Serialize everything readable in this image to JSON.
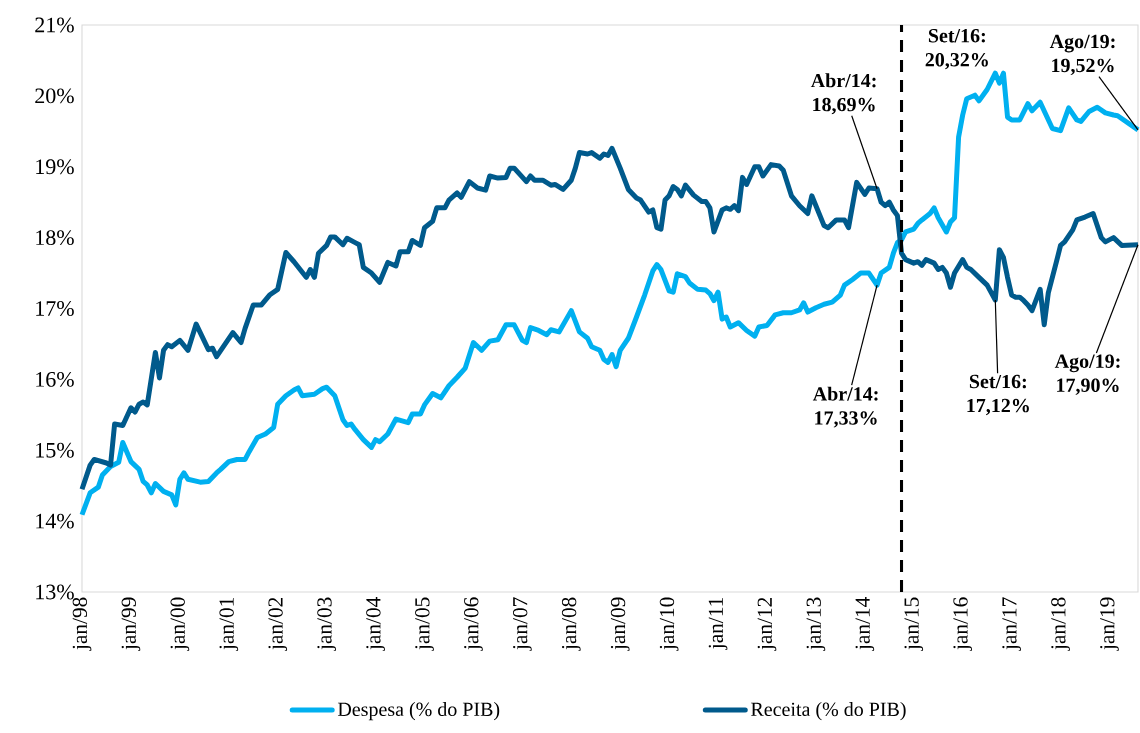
{
  "chart_data": {
    "type": "line",
    "xlim": [
      "1998-01",
      "2019-08"
    ],
    "xticks": [
      {
        "value": "1998-01",
        "label": "jan/98"
      },
      {
        "value": "1999-01",
        "label": "jan/99"
      },
      {
        "value": "2000-01",
        "label": "jan/00"
      },
      {
        "value": "2001-01",
        "label": "jan/01"
      },
      {
        "value": "2002-01",
        "label": "jan/02"
      },
      {
        "value": "2003-01",
        "label": "jan/03"
      },
      {
        "value": "2004-01",
        "label": "jan/04"
      },
      {
        "value": "2005-01",
        "label": "jan/05"
      },
      {
        "value": "2006-01",
        "label": "jan/06"
      },
      {
        "value": "2007-01",
        "label": "jan/07"
      },
      {
        "value": "2008-01",
        "label": "jan/08"
      },
      {
        "value": "2009-01",
        "label": "jan/09"
      },
      {
        "value": "2010-01",
        "label": "jan/10"
      },
      {
        "value": "2011-01",
        "label": "jan/11"
      },
      {
        "value": "2012-01",
        "label": "jan/12"
      },
      {
        "value": "2013-01",
        "label": "jan/13"
      },
      {
        "value": "2014-01",
        "label": "jan/14"
      },
      {
        "value": "2015-01",
        "label": "jan/15"
      },
      {
        "value": "2016-01",
        "label": "jan/16"
      },
      {
        "value": "2017-01",
        "label": "jan/17"
      },
      {
        "value": "2018-01",
        "label": "jan/18"
      },
      {
        "value": "2019-01",
        "label": "jan/19"
      }
    ],
    "ylim": [
      13,
      21
    ],
    "yticks": [
      {
        "value": 13,
        "label": "13%"
      },
      {
        "value": 14,
        "label": "14%"
      },
      {
        "value": 15,
        "label": "15%"
      },
      {
        "value": 16,
        "label": "16%"
      },
      {
        "value": 17,
        "label": "17%"
      },
      {
        "value": 18,
        "label": "18%"
      },
      {
        "value": 19,
        "label": "19%"
      },
      {
        "value": 20,
        "label": "20%"
      },
      {
        "value": 21,
        "label": "21%"
      }
    ],
    "legend": "bottom",
    "series": [
      {
        "name": "Despesa (% do PIB)",
        "color": "#00b0f0",
        "x": [
          "1998-01",
          "1998-03",
          "1998-05",
          "1998-06",
          "1998-08",
          "1998-10",
          "1998-11",
          "1999-01",
          "1999-03",
          "1999-04",
          "1999-05",
          "1999-06",
          "1999-07",
          "1999-09",
          "1999-11",
          "1999-12",
          "2000-01",
          "2000-02",
          "2000-03",
          "2000-06",
          "2000-08",
          "2000-10",
          "2000-11",
          "2001-01",
          "2001-03",
          "2001-05",
          "2001-06",
          "2001-08",
          "2001-10",
          "2001-12",
          "2002-01",
          "2002-03",
          "2002-05",
          "2002-06",
          "2002-07",
          "2002-10",
          "2002-12",
          "2003-01",
          "2003-03",
          "2003-05",
          "2003-06",
          "2003-07",
          "2003-08",
          "2003-10",
          "2003-12",
          "2004-01",
          "2004-02",
          "2004-04",
          "2004-06",
          "2004-09",
          "2004-10",
          "2004-12",
          "2005-01",
          "2005-03",
          "2005-05",
          "2005-07",
          "2005-09",
          "2005-11",
          "2006-01",
          "2006-03",
          "2006-05",
          "2006-07",
          "2006-09",
          "2006-11",
          "2007-01",
          "2007-02",
          "2007-03",
          "2007-05",
          "2007-07",
          "2007-08",
          "2007-10",
          "2008-01",
          "2008-03",
          "2008-05",
          "2008-06",
          "2008-08",
          "2008-09",
          "2008-10",
          "2008-11",
          "2008-12",
          "2009-01",
          "2009-03",
          "2009-05",
          "2009-07",
          "2009-09",
          "2009-10",
          "2009-11",
          "2010-01",
          "2010-02",
          "2010-03",
          "2010-05",
          "2010-06",
          "2010-08",
          "2010-10",
          "2010-11",
          "2010-12",
          "2011-01",
          "2011-02",
          "2011-03",
          "2011-04",
          "2011-06",
          "2011-08",
          "2011-10",
          "2011-11",
          "2012-01",
          "2012-03",
          "2012-05",
          "2012-07",
          "2012-09",
          "2012-10",
          "2012-11",
          "2013-01",
          "2013-03",
          "2013-05",
          "2013-07",
          "2013-08",
          "2013-10",
          "2013-12",
          "2014-02",
          "2014-04",
          "2014-05",
          "2014-07",
          "2014-08",
          "2014-09",
          "2014-10",
          "2014-11",
          "2015-01",
          "2015-02",
          "2015-03",
          "2015-05",
          "2015-06",
          "2015-07",
          "2015-09",
          "2015-10",
          "2015-11",
          "2015-12",
          "2016-01",
          "2016-02",
          "2016-04",
          "2016-05",
          "2016-07",
          "2016-09",
          "2016-10",
          "2016-11",
          "2016-12",
          "2017-01",
          "2017-03",
          "2017-05",
          "2017-06",
          "2017-08",
          "2017-11",
          "2018-01",
          "2018-03",
          "2018-05",
          "2018-06",
          "2018-08",
          "2018-10",
          "2018-12",
          "2019-02",
          "2019-03",
          "2019-08"
        ],
        "values": [
          14.09,
          14.4,
          14.48,
          14.65,
          14.77,
          14.83,
          15.11,
          14.84,
          14.73,
          14.56,
          14.51,
          14.4,
          14.53,
          14.42,
          14.37,
          14.23,
          14.59,
          14.68,
          14.59,
          14.55,
          14.56,
          14.68,
          14.73,
          14.84,
          14.87,
          14.87,
          14.98,
          15.18,
          15.23,
          15.32,
          15.65,
          15.77,
          15.85,
          15.88,
          15.77,
          15.79,
          15.87,
          15.89,
          15.77,
          15.43,
          15.35,
          15.37,
          15.29,
          15.15,
          15.04,
          15.15,
          15.12,
          15.23,
          15.44,
          15.39,
          15.51,
          15.51,
          15.64,
          15.8,
          15.74,
          15.91,
          16.03,
          16.16,
          16.52,
          16.41,
          16.54,
          16.56,
          16.77,
          16.77,
          16.55,
          16.52,
          16.73,
          16.69,
          16.63,
          16.7,
          16.67,
          16.97,
          16.67,
          16.58,
          16.46,
          16.41,
          16.28,
          16.24,
          16.35,
          16.18,
          16.41,
          16.58,
          16.88,
          17.19,
          17.53,
          17.62,
          17.55,
          17.25,
          17.23,
          17.49,
          17.45,
          17.36,
          17.27,
          17.26,
          17.21,
          17.11,
          17.23,
          16.85,
          16.88,
          16.74,
          16.8,
          16.69,
          16.61,
          16.74,
          16.76,
          16.91,
          16.94,
          16.94,
          16.98,
          17.08,
          16.95,
          17.01,
          17.06,
          17.09,
          17.19,
          17.33,
          17.41,
          17.5,
          17.5,
          17.33,
          17.5,
          17.58,
          17.78,
          17.93,
          17.97,
          18.08,
          18.12,
          18.2,
          18.25,
          18.34,
          18.42,
          18.28,
          18.08,
          18.22,
          18.28,
          19.42,
          19.73,
          19.96,
          20.01,
          19.93,
          20.09,
          20.32,
          20.18,
          20.32,
          19.7,
          19.66,
          19.66,
          19.89,
          19.79,
          19.91,
          19.54,
          19.51,
          19.83,
          19.66,
          19.64,
          19.78,
          19.84,
          19.76,
          19.73,
          19.72,
          19.52
        ]
      },
      {
        "name": "Receita (% do PIB)",
        "color": "#005a8c",
        "x": [
          "1998-01",
          "1998-03",
          "1998-04",
          "1998-07",
          "1998-08",
          "1998-09",
          "1998-11",
          "1999-01",
          "1999-02",
          "1999-03",
          "1999-04",
          "1999-05",
          "1999-07",
          "1999-08",
          "1999-09",
          "1999-10",
          "1999-11",
          "2000-01",
          "2000-03",
          "2000-05",
          "2000-08",
          "2000-09",
          "2000-10",
          "2000-12",
          "2001-02",
          "2001-04",
          "2001-05",
          "2001-07",
          "2001-09",
          "2001-11",
          "2002-01",
          "2002-03",
          "2002-05",
          "2002-08",
          "2002-09",
          "2002-10",
          "2002-11",
          "2003-01",
          "2003-02",
          "2003-03",
          "2003-05",
          "2003-06",
          "2003-08",
          "2003-09",
          "2003-10",
          "2003-12",
          "2004-02",
          "2004-04",
          "2004-06",
          "2004-07",
          "2004-09",
          "2004-10",
          "2004-12",
          "2005-01",
          "2005-03",
          "2005-04",
          "2005-06",
          "2005-07",
          "2005-09",
          "2005-10",
          "2005-12",
          "2006-02",
          "2006-04",
          "2006-05",
          "2006-07",
          "2006-09",
          "2006-10",
          "2006-11",
          "2007-02",
          "2007-03",
          "2007-04",
          "2007-06",
          "2007-08",
          "2007-09",
          "2007-11",
          "2008-01",
          "2008-02",
          "2008-03",
          "2008-05",
          "2008-06",
          "2008-08",
          "2008-09",
          "2008-10",
          "2008-11",
          "2009-01",
          "2009-03",
          "2009-05",
          "2009-06",
          "2009-08",
          "2009-09",
          "2009-10",
          "2009-11",
          "2009-12",
          "2010-01",
          "2010-02",
          "2010-03",
          "2010-04",
          "2010-05",
          "2010-07",
          "2010-09",
          "2010-10",
          "2010-11",
          "2010-12",
          "2011-02",
          "2011-03",
          "2011-04",
          "2011-05",
          "2011-06",
          "2011-07",
          "2011-08",
          "2011-10",
          "2011-11",
          "2011-12",
          "2012-02",
          "2012-04",
          "2012-05",
          "2012-07",
          "2012-09",
          "2012-11",
          "2012-12",
          "2013-03",
          "2013-04",
          "2013-06",
          "2013-08",
          "2013-09",
          "2013-11",
          "2014-01",
          "2014-02",
          "2014-04",
          "2014-05",
          "2014-06",
          "2014-07",
          "2014-08",
          "2014-09",
          "2014-10",
          "2014-11",
          "2015-01",
          "2015-02",
          "2015-03",
          "2015-04",
          "2015-06",
          "2015-07",
          "2015-08",
          "2015-09",
          "2015-10",
          "2015-11",
          "2016-01",
          "2016-02",
          "2016-03",
          "2016-05",
          "2016-07",
          "2016-09",
          "2016-10",
          "2016-11",
          "2016-12",
          "2017-01",
          "2017-02",
          "2017-03",
          "2017-04",
          "2017-05",
          "2017-06",
          "2017-08",
          "2017-09",
          "2017-10",
          "2017-12",
          "2018-01",
          "2018-02",
          "2018-04",
          "2018-05",
          "2018-07",
          "2018-09",
          "2018-11",
          "2018-12",
          "2019-02",
          "2019-04",
          "2019-08"
        ],
        "values": [
          14.45,
          14.79,
          14.87,
          14.82,
          14.79,
          15.37,
          15.35,
          15.6,
          15.54,
          15.65,
          15.68,
          15.64,
          16.38,
          16.02,
          16.41,
          16.49,
          16.46,
          16.55,
          16.41,
          16.78,
          16.42,
          16.44,
          16.32,
          16.49,
          16.66,
          16.52,
          16.72,
          17.05,
          17.05,
          17.19,
          17.27,
          17.79,
          17.66,
          17.44,
          17.55,
          17.44,
          17.78,
          17.89,
          18.01,
          18.01,
          17.9,
          17.99,
          17.93,
          17.9,
          17.58,
          17.5,
          17.37,
          17.65,
          17.6,
          17.8,
          17.8,
          17.96,
          17.89,
          18.14,
          18.23,
          18.42,
          18.42,
          18.53,
          18.63,
          18.57,
          18.79,
          18.7,
          18.67,
          18.87,
          18.84,
          18.85,
          18.98,
          18.98,
          18.79,
          18.87,
          18.81,
          18.81,
          18.74,
          18.75,
          18.68,
          18.81,
          18.98,
          19.2,
          19.18,
          19.2,
          19.12,
          19.18,
          19.16,
          19.26,
          18.98,
          18.68,
          18.56,
          18.53,
          18.36,
          18.39,
          18.14,
          18.12,
          18.53,
          18.59,
          18.72,
          18.68,
          18.59,
          18.74,
          18.6,
          18.51,
          18.51,
          18.42,
          18.08,
          18.39,
          18.42,
          18.4,
          18.45,
          18.38,
          18.85,
          18.75,
          19.0,
          19.0,
          18.87,
          19.03,
          19.01,
          18.95,
          18.59,
          18.45,
          18.34,
          18.59,
          18.17,
          18.14,
          18.25,
          18.25,
          18.14,
          18.78,
          18.61,
          18.7,
          18.69,
          18.5,
          18.45,
          18.5,
          18.39,
          18.31,
          17.78,
          17.69,
          17.64,
          17.66,
          17.61,
          17.69,
          17.64,
          17.55,
          17.58,
          17.5,
          17.3,
          17.5,
          17.69,
          17.58,
          17.55,
          17.44,
          17.33,
          17.12,
          17.83,
          17.72,
          17.44,
          17.19,
          17.16,
          17.16,
          17.11,
          17.05,
          16.97,
          17.27,
          16.77,
          17.22,
          17.66,
          17.89,
          17.94,
          18.11,
          18.25,
          18.29,
          18.34,
          18.0,
          17.94,
          18.0,
          17.89,
          17.9
        ]
      }
    ],
    "ref_lines": [
      {
        "axis": "x",
        "value": "2014-10",
        "color": "#000000",
        "line_style": "dashed"
      }
    ],
    "annotations": [
      {
        "text": "Abr/14: 18,69%",
        "x": "2014-04",
        "y": 18.69
      },
      {
        "text": "Abr/14: 17,33%",
        "x": "2014-04",
        "y": 17.33
      },
      {
        "text": "Set/16: 20,32%",
        "x": "2016-09",
        "y": 20.32
      },
      {
        "text": "Ago/19: 19,52%",
        "x": "2019-08",
        "y": 19.52
      },
      {
        "text": "Set/16: 17,12%",
        "x": "2016-09",
        "y": 17.12
      },
      {
        "text": "Ago/19: 17,90%",
        "x": "2019-08",
        "y": 17.9
      }
    ]
  }
}
